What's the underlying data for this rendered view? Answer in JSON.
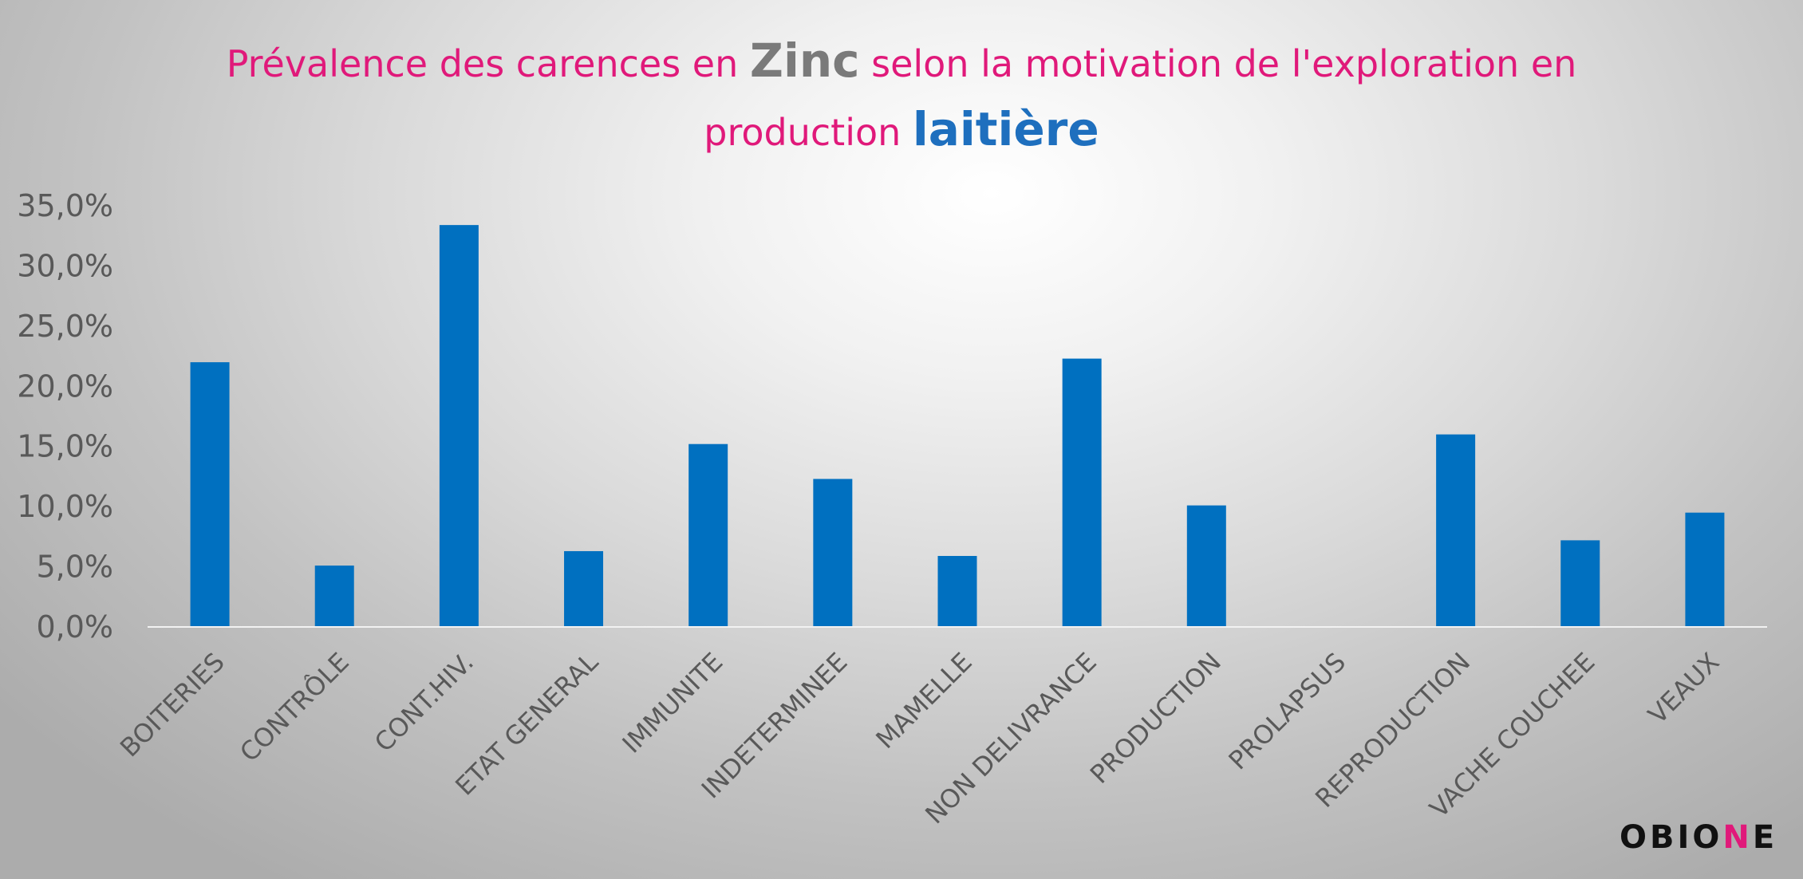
{
  "title": {
    "line1_part1": "Prévalence des carences en ",
    "line1_emph": "Zinc",
    "line1_part2": " selon la motivation de l'exploration en",
    "line2_part1": "production ",
    "line2_emph": "laitière"
  },
  "colors": {
    "title_pink": "#e0197a",
    "title_gray": "#7a7a7a",
    "title_blue": "#1e6fbe",
    "bar": "#0070c0",
    "axis_text": "#595959",
    "axis_line": "#f2f2f2"
  },
  "logo": {
    "text_before": "OBIO",
    "text_mark": "N",
    "text_after": "E"
  },
  "chart_data": {
    "type": "bar",
    "title": "Prévalence des carences en Zinc selon la motivation de l'exploration en production laitière",
    "categories": [
      "BOITERIES",
      "CONTRÔLE",
      "CONT.HIV.",
      "ETAT GENERAL",
      "IMMUNITE",
      "INDETERMINEE",
      "MAMELLE",
      "NON DELIVRANCE",
      "PRODUCTION",
      "PROLAPSUS",
      "REPRODUCTION",
      "VACHE COUCHEE",
      "VEAUX"
    ],
    "values": [
      22.0,
      5.1,
      33.4,
      6.3,
      15.2,
      12.3,
      5.9,
      22.3,
      10.1,
      0.0,
      16.0,
      7.2,
      9.5
    ],
    "ytick_labels": [
      "0,0%",
      "5,0%",
      "10,0%",
      "15,0%",
      "20,0%",
      "25,0%",
      "30,0%",
      "35,0%"
    ],
    "ylim": [
      0,
      35
    ],
    "ytick_step": 5,
    "xlabel": "",
    "ylabel": "",
    "grid": false,
    "legend": "none"
  }
}
